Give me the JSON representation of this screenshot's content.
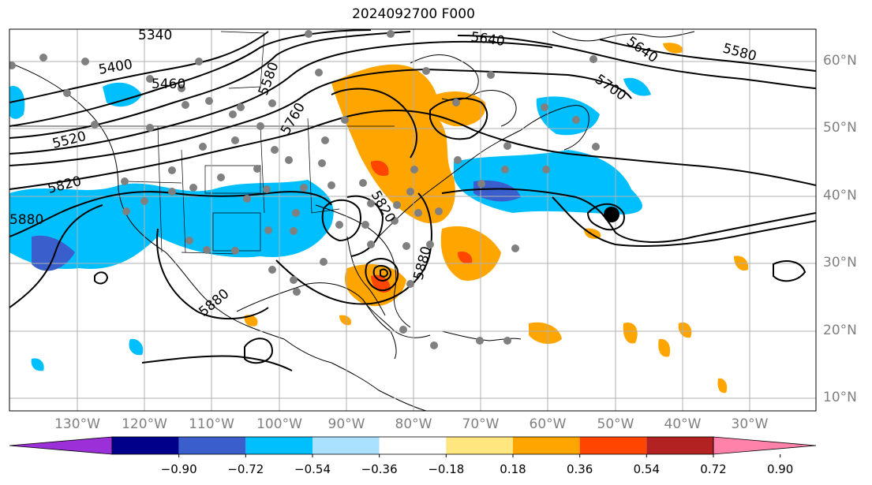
{
  "title": "2024092700 F000",
  "latitude_labels": [
    "60°N",
    "50°N",
    "40°N",
    "30°N",
    "20°N",
    "10°N"
  ],
  "longitude_labels": [
    "130°W",
    "120°W",
    "110°W",
    "100°W",
    "90°W",
    "80°W",
    "70°W",
    "60°W",
    "50°W",
    "40°W",
    "30°W"
  ],
  "contour_labels": [
    "5340",
    "5400",
    "5460",
    "5520",
    "5580",
    "5640",
    "5580",
    "5700",
    "5760",
    "5820",
    "5880",
    "5880",
    "5820",
    "5880",
    "5640"
  ],
  "colorbar": {
    "ticks": [
      "−0.90",
      "−0.72",
      "−0.54",
      "−0.36",
      "−0.18",
      "0.18",
      "0.36",
      "0.54",
      "0.72",
      "0.90"
    ],
    "colors": [
      "#9b30d9",
      "#00008b",
      "#3a5fcd",
      "#00bfff",
      "#a9e1ff",
      "#ffffff",
      "#ffe67f",
      "#ffa500",
      "#ff4500",
      "#b22222",
      "#ff82ab"
    ]
  }
}
